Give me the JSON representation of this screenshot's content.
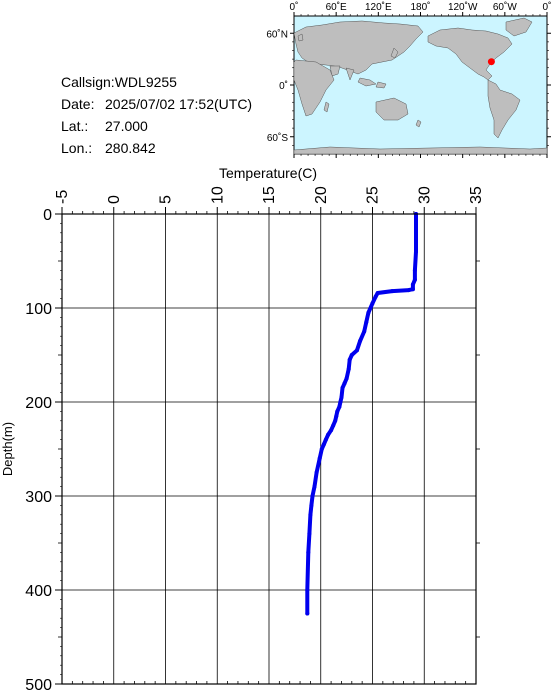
{
  "station": {
    "callsign_label": "Callsign:",
    "callsign": "WDL9255",
    "date_label": "Date:",
    "date": "2025/07/02 17:52(UTC)",
    "lat_label": "Lat.:",
    "lat": "27.000",
    "lon_label": "Lon.:",
    "lon": "280.842"
  },
  "map": {
    "lon_ticks": [
      "0˚",
      "60˚E",
      "120˚E",
      "180˚",
      "120˚W",
      "60˚W",
      "0˚"
    ],
    "lat_ticks": [
      "60˚N",
      "0˚",
      "60˚S"
    ],
    "ocean_color": "#ccf5ff",
    "land_color": "#bebebe",
    "marker_color": "#ff0000",
    "marker": {
      "lon": 280.842,
      "lat": 27.0
    }
  },
  "chart_data": {
    "type": "line",
    "title": "",
    "xlabel": "Temperature(C)",
    "ylabel": "Depth(m)",
    "xlim": [
      -5,
      35
    ],
    "ylim": [
      0,
      500
    ],
    "y_inverted": true,
    "x_ticks": [
      "-5",
      "0",
      "5",
      "10",
      "15",
      "20",
      "25",
      "30",
      "35"
    ],
    "y_ticks": [
      "0",
      "100",
      "200",
      "300",
      "400",
      "500"
    ],
    "grid": true,
    "line_color": "#0000ee",
    "series": [
      {
        "x": [
          29.2,
          29.2,
          29.2,
          29.1,
          29.1,
          28.9,
          28.9,
          28.5,
          26.9,
          25.5,
          25.3,
          25.0,
          24.6,
          24.4,
          24.2,
          23.8,
          23.5,
          23.0,
          22.8,
          22.7,
          22.5,
          22.3,
          22.1,
          22.0,
          21.9,
          21.8,
          21.6,
          21.5,
          21.4,
          21.2,
          21.0,
          20.7,
          20.5,
          20.3,
          20.1,
          19.9,
          19.6,
          19.4,
          19.2,
          19.1,
          19.0,
          18.9,
          18.8,
          18.7,
          18.7
        ],
        "y": [
          0,
          20,
          40,
          60,
          70,
          75,
          80,
          81,
          82,
          84,
          88,
          95,
          105,
          115,
          125,
          135,
          145,
          150,
          155,
          165,
          175,
          180,
          185,
          195,
          200,
          205,
          210,
          215,
          220,
          225,
          230,
          235,
          240,
          245,
          250,
          260,
          275,
          290,
          300,
          310,
          320,
          340,
          360,
          400,
          425
        ]
      }
    ]
  }
}
